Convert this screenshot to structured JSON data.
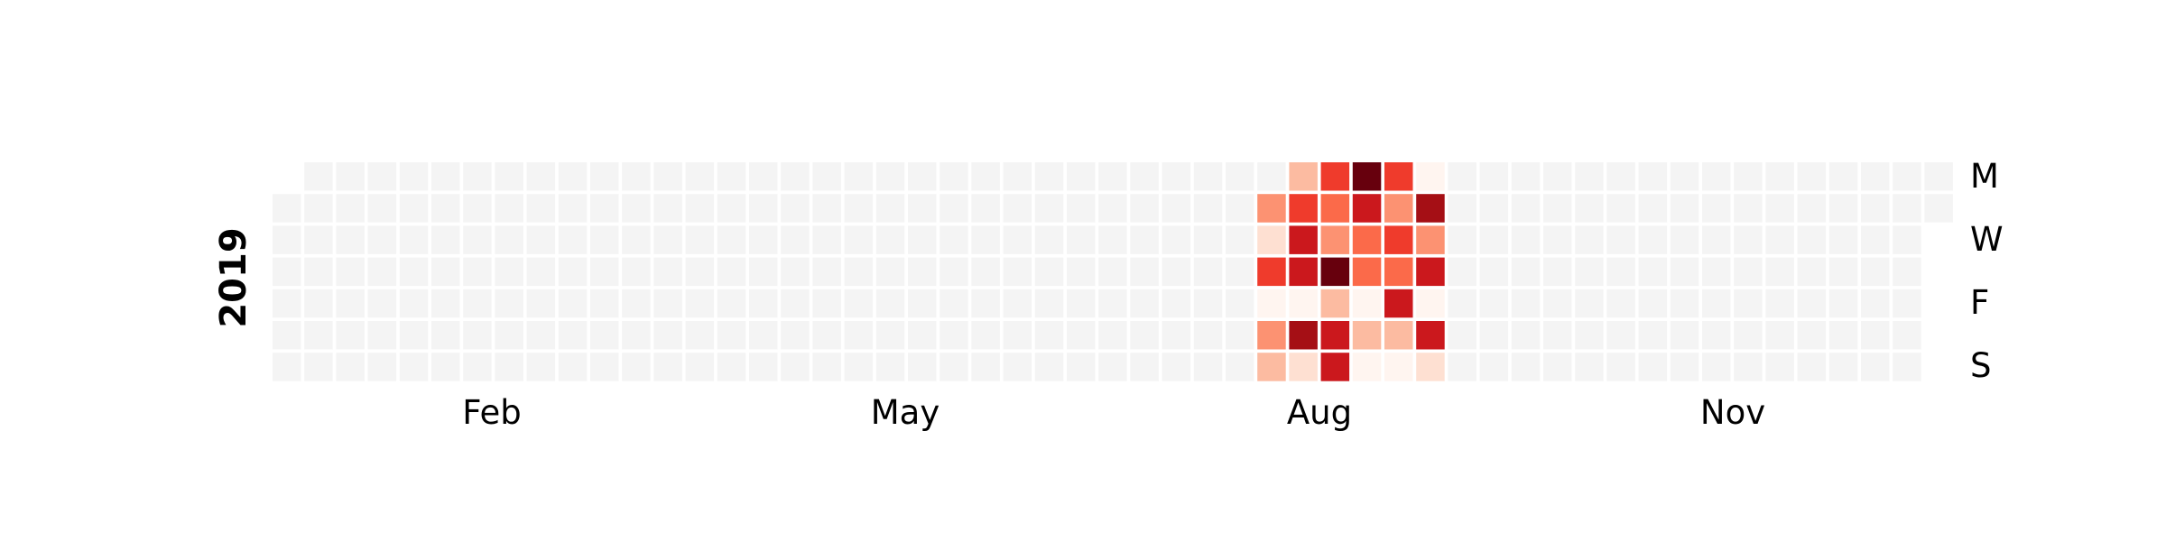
{
  "chart_data": {
    "type": "heatmap",
    "kind": "calendar",
    "year": "2019",
    "empty_color": "#f4f4f4",
    "colormap": "Reds",
    "palette": [
      "#fff5f0",
      "#fee0d2",
      "#fcbba1",
      "#fc9272",
      "#fb6a4a",
      "#ef3b2c",
      "#cb181d",
      "#a50f15",
      "#67000d"
    ],
    "value_range": [
      0,
      8
    ],
    "month_labels": [
      "Feb",
      "May",
      "Aug",
      "Nov"
    ],
    "day_labels": [
      "M",
      "W",
      "F",
      "S"
    ],
    "grid_on": false,
    "legend": "none",
    "active_weeks": [
      {
        "week": 31,
        "values": [
          null,
          3,
          1,
          5,
          0,
          3,
          2
        ]
      },
      {
        "week": 32,
        "values": [
          2,
          5,
          6,
          6,
          0,
          7,
          1
        ]
      },
      {
        "week": 33,
        "values": [
          5,
          4,
          3,
          8,
          2,
          6,
          6
        ]
      },
      {
        "week": 34,
        "values": [
          8,
          6,
          4,
          4,
          0,
          2,
          0
        ]
      },
      {
        "week": 35,
        "values": [
          5,
          3,
          5,
          4,
          6,
          2,
          0
        ]
      },
      {
        "week": 36,
        "values": [
          0,
          7,
          3,
          6,
          0,
          6,
          1
        ]
      }
    ]
  }
}
